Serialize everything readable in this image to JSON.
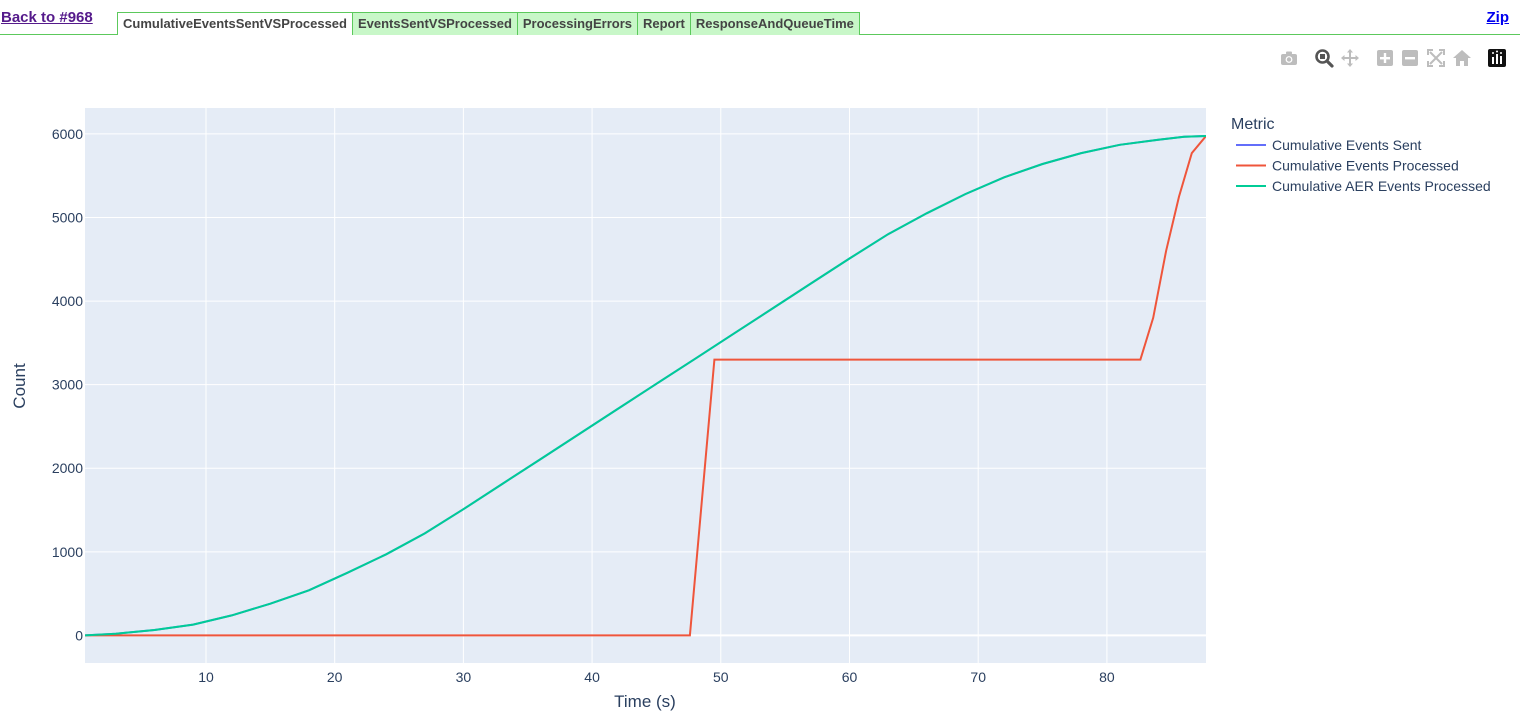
{
  "nav": {
    "back_label": "Back to #968",
    "zip_label": "Zip",
    "tabs": [
      {
        "label": "CumulativeEventsSentVSProcessed",
        "active": true
      },
      {
        "label": "EventsSentVSProcessed",
        "active": false
      },
      {
        "label": "ProcessingErrors",
        "active": false
      },
      {
        "label": "Report",
        "active": false
      },
      {
        "label": "ResponseAndQueueTime",
        "active": false
      }
    ]
  },
  "modebar": {
    "icons": [
      "camera-icon",
      "zoom-icon",
      "pan-icon",
      "zoom-in-icon",
      "zoom-out-icon",
      "autoscale-icon",
      "reset-axes-icon",
      "plotly-logo-icon"
    ]
  },
  "chart_data": {
    "type": "line",
    "title": "",
    "xlabel": "Time (s)",
    "ylabel": "Count",
    "xlim": [
      0.6,
      87.7
    ],
    "ylim": [
      -330,
      6310
    ],
    "xticks": [
      10,
      20,
      30,
      40,
      50,
      60,
      70,
      80
    ],
    "yticks": [
      0,
      1000,
      2000,
      3000,
      4000,
      5000,
      6000
    ],
    "grid": true,
    "legend_title": "Metric",
    "legend_position": "right",
    "series": [
      {
        "name": "Cumulative Events Sent",
        "color": "#636efa",
        "x": [
          0.6,
          3,
          6,
          9,
          12,
          15,
          18,
          21,
          24,
          27,
          30,
          33,
          36,
          39,
          42,
          45,
          48,
          51,
          54,
          57,
          60,
          63,
          66,
          69,
          72,
          75,
          78,
          81,
          84,
          86,
          87.7
        ],
        "y": [
          0,
          20,
          65,
          130,
          240,
          380,
          540,
          750,
          970,
          1220,
          1510,
          1810,
          2110,
          2410,
          2710,
          3010,
          3310,
          3610,
          3910,
          4210,
          4510,
          4800,
          5050,
          5280,
          5480,
          5640,
          5770,
          5870,
          5930,
          5965,
          5975
        ]
      },
      {
        "name": "Cumulative Events Processed",
        "color": "#ef553b",
        "x": [
          0.6,
          47.6,
          49.5,
          82.6,
          83.6,
          84.6,
          85.6,
          86.6,
          87.7
        ],
        "y": [
          0,
          0,
          3300,
          3300,
          3800,
          4600,
          5250,
          5770,
          5975
        ]
      },
      {
        "name": "Cumulative AER Events Processed",
        "color": "#00cc96",
        "x": [
          0.6,
          3,
          6,
          9,
          12,
          15,
          18,
          21,
          24,
          27,
          30,
          33,
          36,
          39,
          42,
          45,
          48,
          51,
          54,
          57,
          60,
          63,
          66,
          69,
          72,
          75,
          78,
          81,
          84,
          86,
          87.7
        ],
        "y": [
          0,
          20,
          65,
          130,
          240,
          380,
          540,
          750,
          970,
          1220,
          1510,
          1810,
          2110,
          2410,
          2710,
          3010,
          3310,
          3610,
          3910,
          4210,
          4510,
          4800,
          5050,
          5280,
          5480,
          5640,
          5770,
          5870,
          5930,
          5965,
          5975
        ]
      }
    ]
  }
}
